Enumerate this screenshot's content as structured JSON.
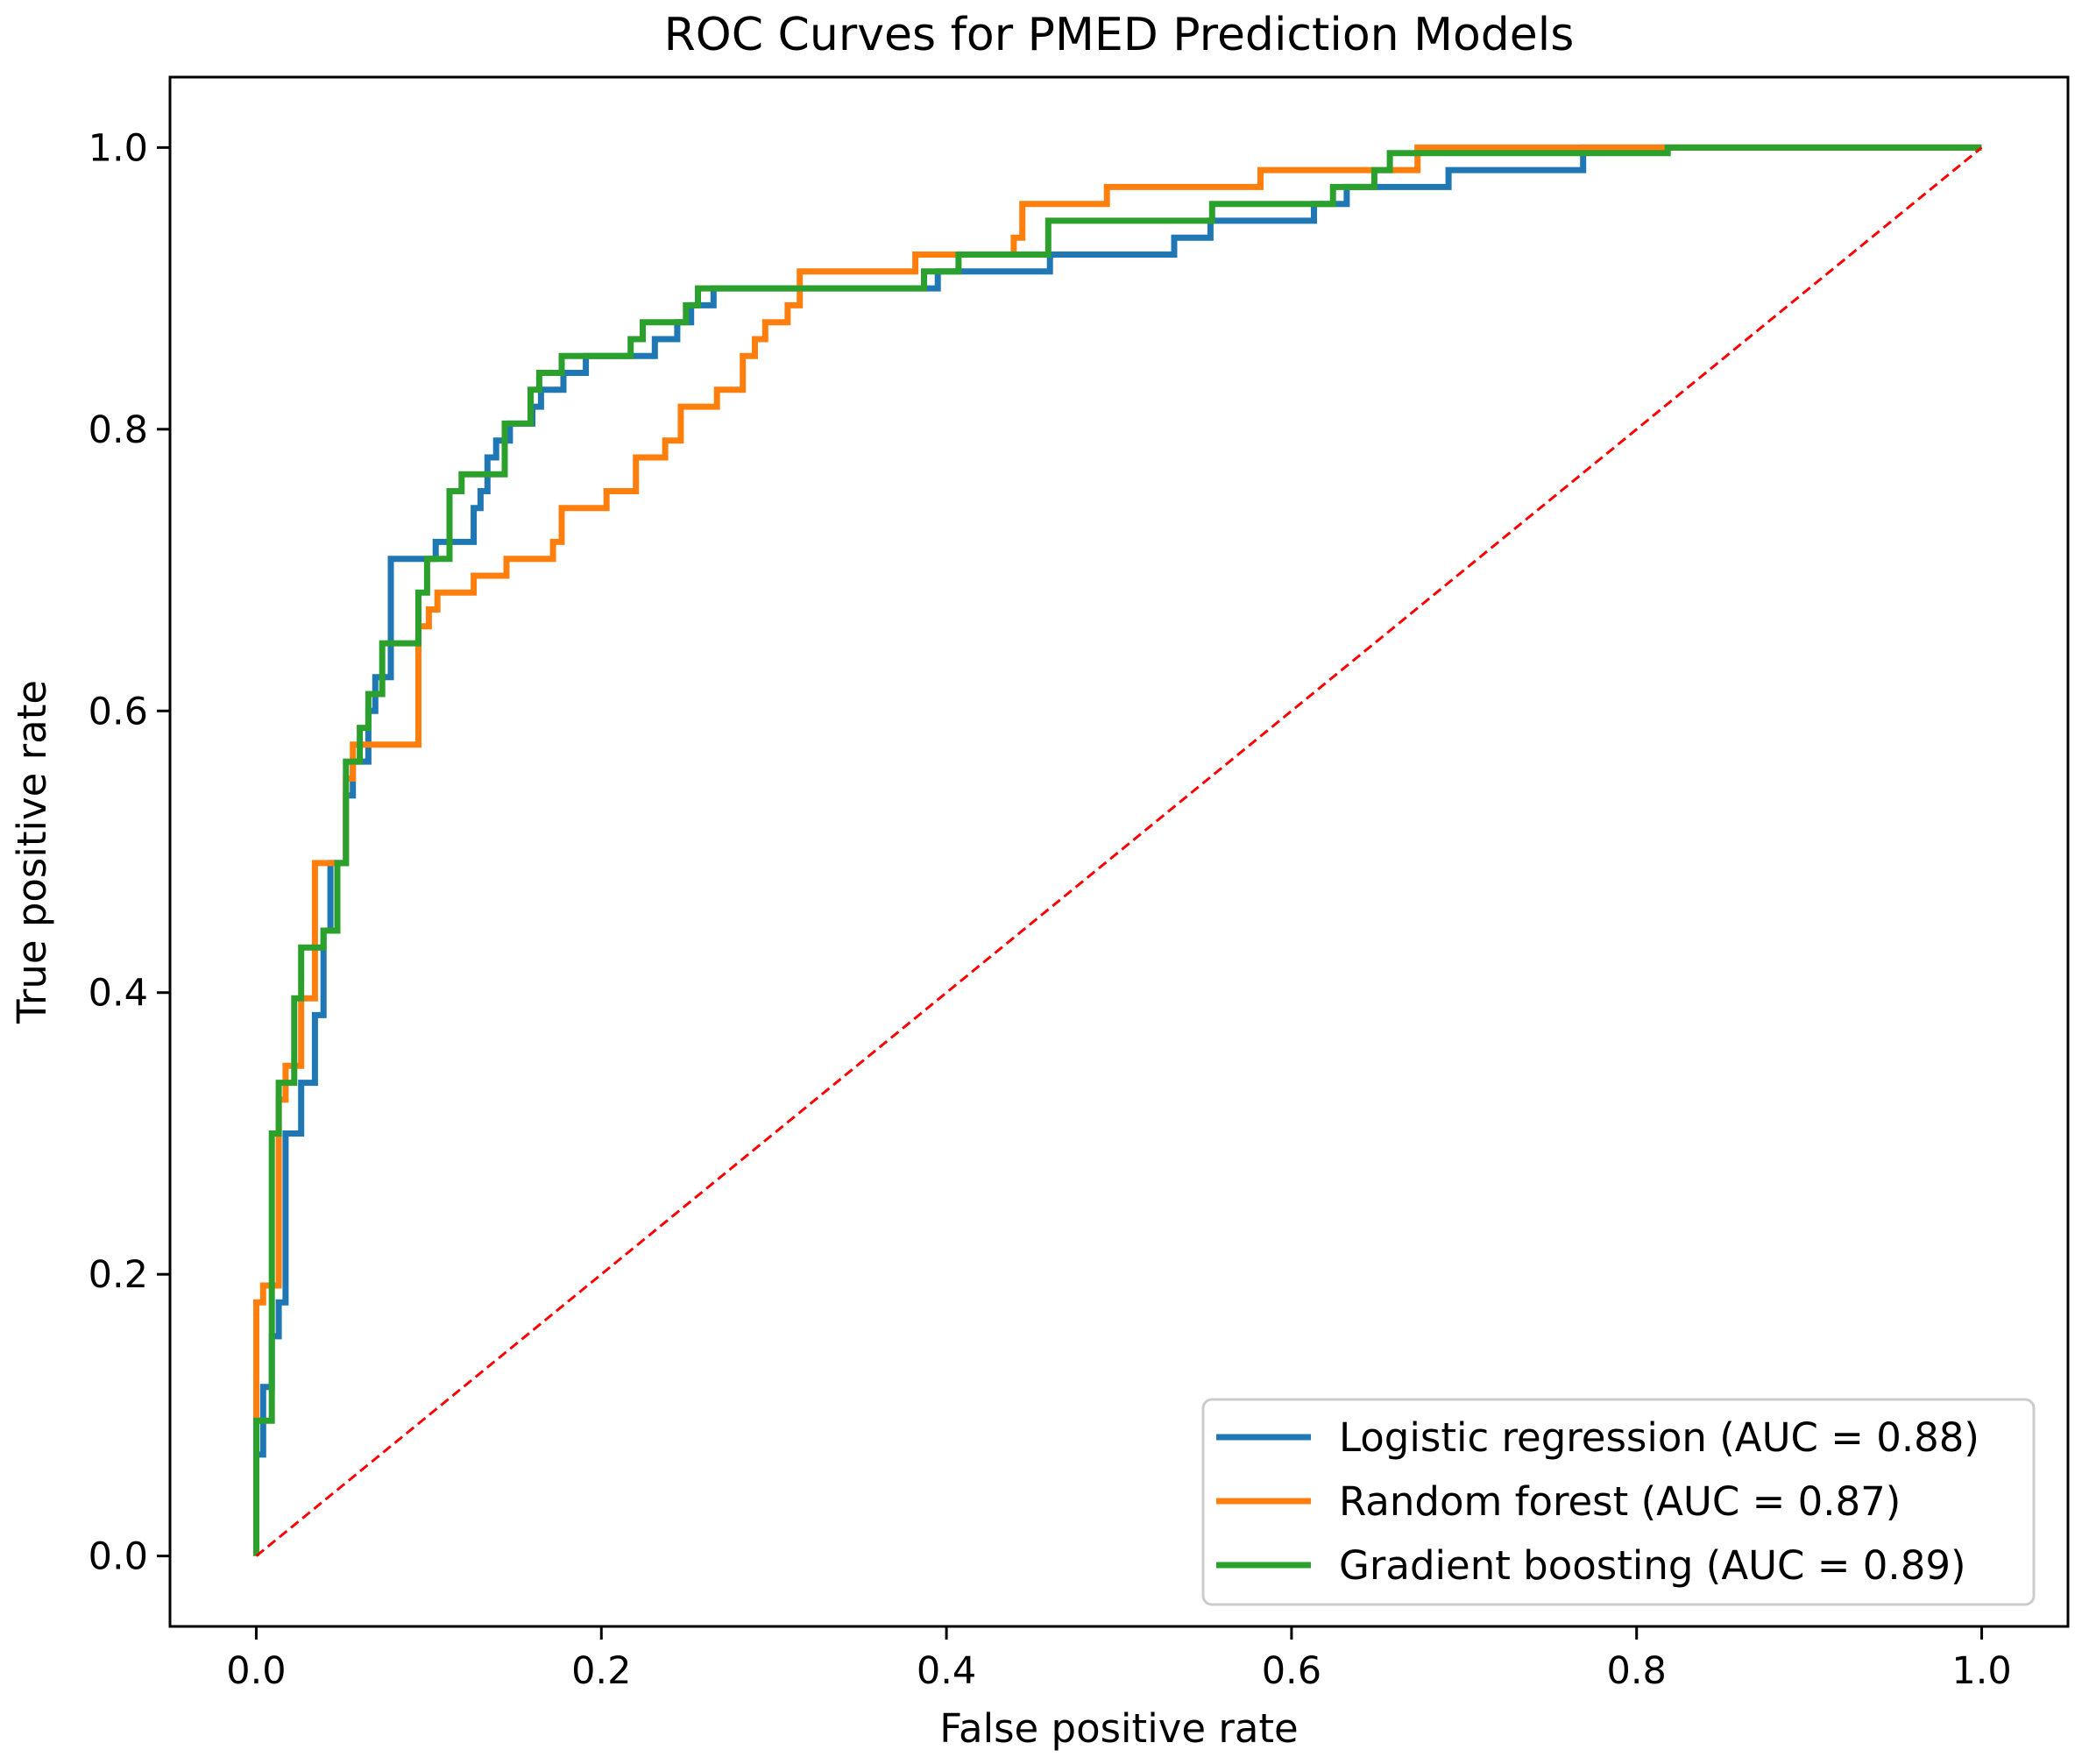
{
  "chart_data": {
    "type": "line",
    "title": "ROC Curves for PMED Prediction Models",
    "xlabel": "False positive rate",
    "ylabel": "True positive rate",
    "xlim": [
      -0.05,
      1.05
    ],
    "ylim": [
      -0.05,
      1.05
    ],
    "xticks": [
      0.0,
      0.2,
      0.4,
      0.6,
      0.8,
      1.0
    ],
    "yticks": [
      0.0,
      0.2,
      0.4,
      0.6,
      0.8,
      1.0
    ],
    "xtick_labels": [
      "0.0",
      "0.2",
      "0.4",
      "0.6",
      "0.8",
      "1.0"
    ],
    "ytick_labels": [
      "0.0",
      "0.2",
      "0.4",
      "0.6",
      "0.8",
      "1.0"
    ],
    "grid": false,
    "legend_position": "lower-right",
    "series": [
      {
        "name": "Logistic regression (AUC = 0.88)",
        "color": "#1f77b4",
        "x": [
          0.0,
          0.0,
          0.004,
          0.004,
          0.009,
          0.009,
          0.013,
          0.013,
          0.017,
          0.017,
          0.026,
          0.026,
          0.034,
          0.034,
          0.039,
          0.039,
          0.043,
          0.043,
          0.052,
          0.052,
          0.056,
          0.056,
          0.065,
          0.065,
          0.069,
          0.069,
          0.078,
          0.078,
          0.082,
          0.082,
          0.104,
          0.104,
          0.126,
          0.126,
          0.13,
          0.13,
          0.134,
          0.134,
          0.139,
          0.139,
          0.147,
          0.147,
          0.156,
          0.156,
          0.16,
          0.16,
          0.165,
          0.165,
          0.178,
          0.178,
          0.191,
          0.191,
          0.231,
          0.231,
          0.244,
          0.244,
          0.252,
          0.252,
          0.265,
          0.265,
          0.395,
          0.395,
          0.46,
          0.46,
          0.532,
          0.532,
          0.553,
          0.553,
          0.613,
          0.613,
          0.632,
          0.632,
          0.691,
          0.691,
          0.769,
          0.769,
          1.0
        ],
        "y": [
          0.0,
          0.072,
          0.072,
          0.12,
          0.12,
          0.156,
          0.156,
          0.18,
          0.18,
          0.3,
          0.3,
          0.336,
          0.336,
          0.384,
          0.384,
          0.444,
          0.444,
          0.492,
          0.492,
          0.54,
          0.54,
          0.564,
          0.564,
          0.6,
          0.6,
          0.624,
          0.624,
          0.708,
          0.708,
          0.708,
          0.708,
          0.72,
          0.72,
          0.744,
          0.744,
          0.756,
          0.756,
          0.78,
          0.78,
          0.792,
          0.792,
          0.804,
          0.804,
          0.804,
          0.804,
          0.816,
          0.816,
          0.828,
          0.828,
          0.84,
          0.84,
          0.852,
          0.852,
          0.864,
          0.864,
          0.876,
          0.876,
          0.888,
          0.888,
          0.9,
          0.9,
          0.912,
          0.912,
          0.924,
          0.924,
          0.936,
          0.936,
          0.948,
          0.948,
          0.96,
          0.96,
          0.972,
          0.972,
          0.984,
          0.984,
          1.0,
          1.0
        ]
      },
      {
        "name": "Random forest (AUC = 0.87)",
        "color": "#ff7f0e",
        "x": [
          0.0,
          0.0,
          0.004,
          0.004,
          0.013,
          0.013,
          0.017,
          0.017,
          0.026,
          0.026,
          0.034,
          0.034,
          0.039,
          0.039,
          0.052,
          0.052,
          0.056,
          0.056,
          0.074,
          0.074,
          0.094,
          0.094,
          0.1,
          0.1,
          0.105,
          0.105,
          0.112,
          0.112,
          0.126,
          0.126,
          0.141,
          0.141,
          0.145,
          0.145,
          0.172,
          0.172,
          0.177,
          0.177,
          0.203,
          0.203,
          0.22,
          0.22,
          0.237,
          0.237,
          0.246,
          0.246,
          0.267,
          0.267,
          0.282,
          0.282,
          0.289,
          0.289,
          0.295,
          0.295,
          0.308,
          0.308,
          0.315,
          0.315,
          0.382,
          0.382,
          0.439,
          0.439,
          0.444,
          0.444,
          0.493,
          0.493,
          0.582,
          0.582,
          0.642,
          0.642,
          0.673,
          0.673,
          0.691,
          0.691,
          1.0
        ],
        "y": [
          0.0,
          0.18,
          0.18,
          0.192,
          0.192,
          0.324,
          0.324,
          0.348,
          0.348,
          0.396,
          0.396,
          0.492,
          0.492,
          0.492,
          0.492,
          0.552,
          0.552,
          0.576,
          0.576,
          0.576,
          0.576,
          0.66,
          0.66,
          0.672,
          0.672,
          0.684,
          0.684,
          0.684,
          0.684,
          0.696,
          0.696,
          0.696,
          0.696,
          0.708,
          0.708,
          0.72,
          0.72,
          0.744,
          0.744,
          0.756,
          0.756,
          0.78,
          0.78,
          0.792,
          0.792,
          0.816,
          0.816,
          0.828,
          0.828,
          0.852,
          0.852,
          0.864,
          0.864,
          0.876,
          0.876,
          0.888,
          0.888,
          0.912,
          0.912,
          0.924,
          0.924,
          0.936,
          0.936,
          0.96,
          0.96,
          0.972,
          0.972,
          0.984,
          0.984,
          0.984,
          0.984,
          1.0,
          1.0,
          1.0,
          1.0
        ]
      },
      {
        "name": "Gradient boosting (AUC = 0.89)",
        "color": "#2ca02c",
        "x": [
          0.0,
          0.0,
          0.009,
          0.009,
          0.013,
          0.013,
          0.022,
          0.022,
          0.026,
          0.026,
          0.039,
          0.039,
          0.047,
          0.047,
          0.052,
          0.052,
          0.06,
          0.06,
          0.065,
          0.065,
          0.073,
          0.073,
          0.094,
          0.094,
          0.099,
          0.099,
          0.112,
          0.112,
          0.119,
          0.119,
          0.144,
          0.144,
          0.159,
          0.159,
          0.164,
          0.164,
          0.177,
          0.177,
          0.217,
          0.217,
          0.224,
          0.224,
          0.249,
          0.249,
          0.256,
          0.256,
          0.387,
          0.387,
          0.407,
          0.407,
          0.459,
          0.459,
          0.554,
          0.554,
          0.624,
          0.624,
          0.648,
          0.648,
          0.657,
          0.657,
          0.818,
          0.818,
          1.0
        ],
        "y": [
          0.0,
          0.096,
          0.096,
          0.3,
          0.3,
          0.336,
          0.336,
          0.396,
          0.396,
          0.432,
          0.432,
          0.444,
          0.444,
          0.492,
          0.492,
          0.564,
          0.564,
          0.588,
          0.588,
          0.612,
          0.612,
          0.648,
          0.648,
          0.684,
          0.684,
          0.708,
          0.708,
          0.756,
          0.756,
          0.768,
          0.768,
          0.804,
          0.804,
          0.828,
          0.828,
          0.84,
          0.84,
          0.852,
          0.852,
          0.864,
          0.864,
          0.876,
          0.876,
          0.888,
          0.888,
          0.9,
          0.9,
          0.912,
          0.912,
          0.924,
          0.924,
          0.948,
          0.948,
          0.96,
          0.96,
          0.972,
          0.972,
          0.984,
          0.984,
          0.996,
          0.996,
          1.0,
          1.0
        ]
      },
      {
        "name": "",
        "color": "#ff0000",
        "dashed": true,
        "x": [
          0.0,
          1.0
        ],
        "y": [
          0.0,
          1.0
        ]
      }
    ]
  }
}
